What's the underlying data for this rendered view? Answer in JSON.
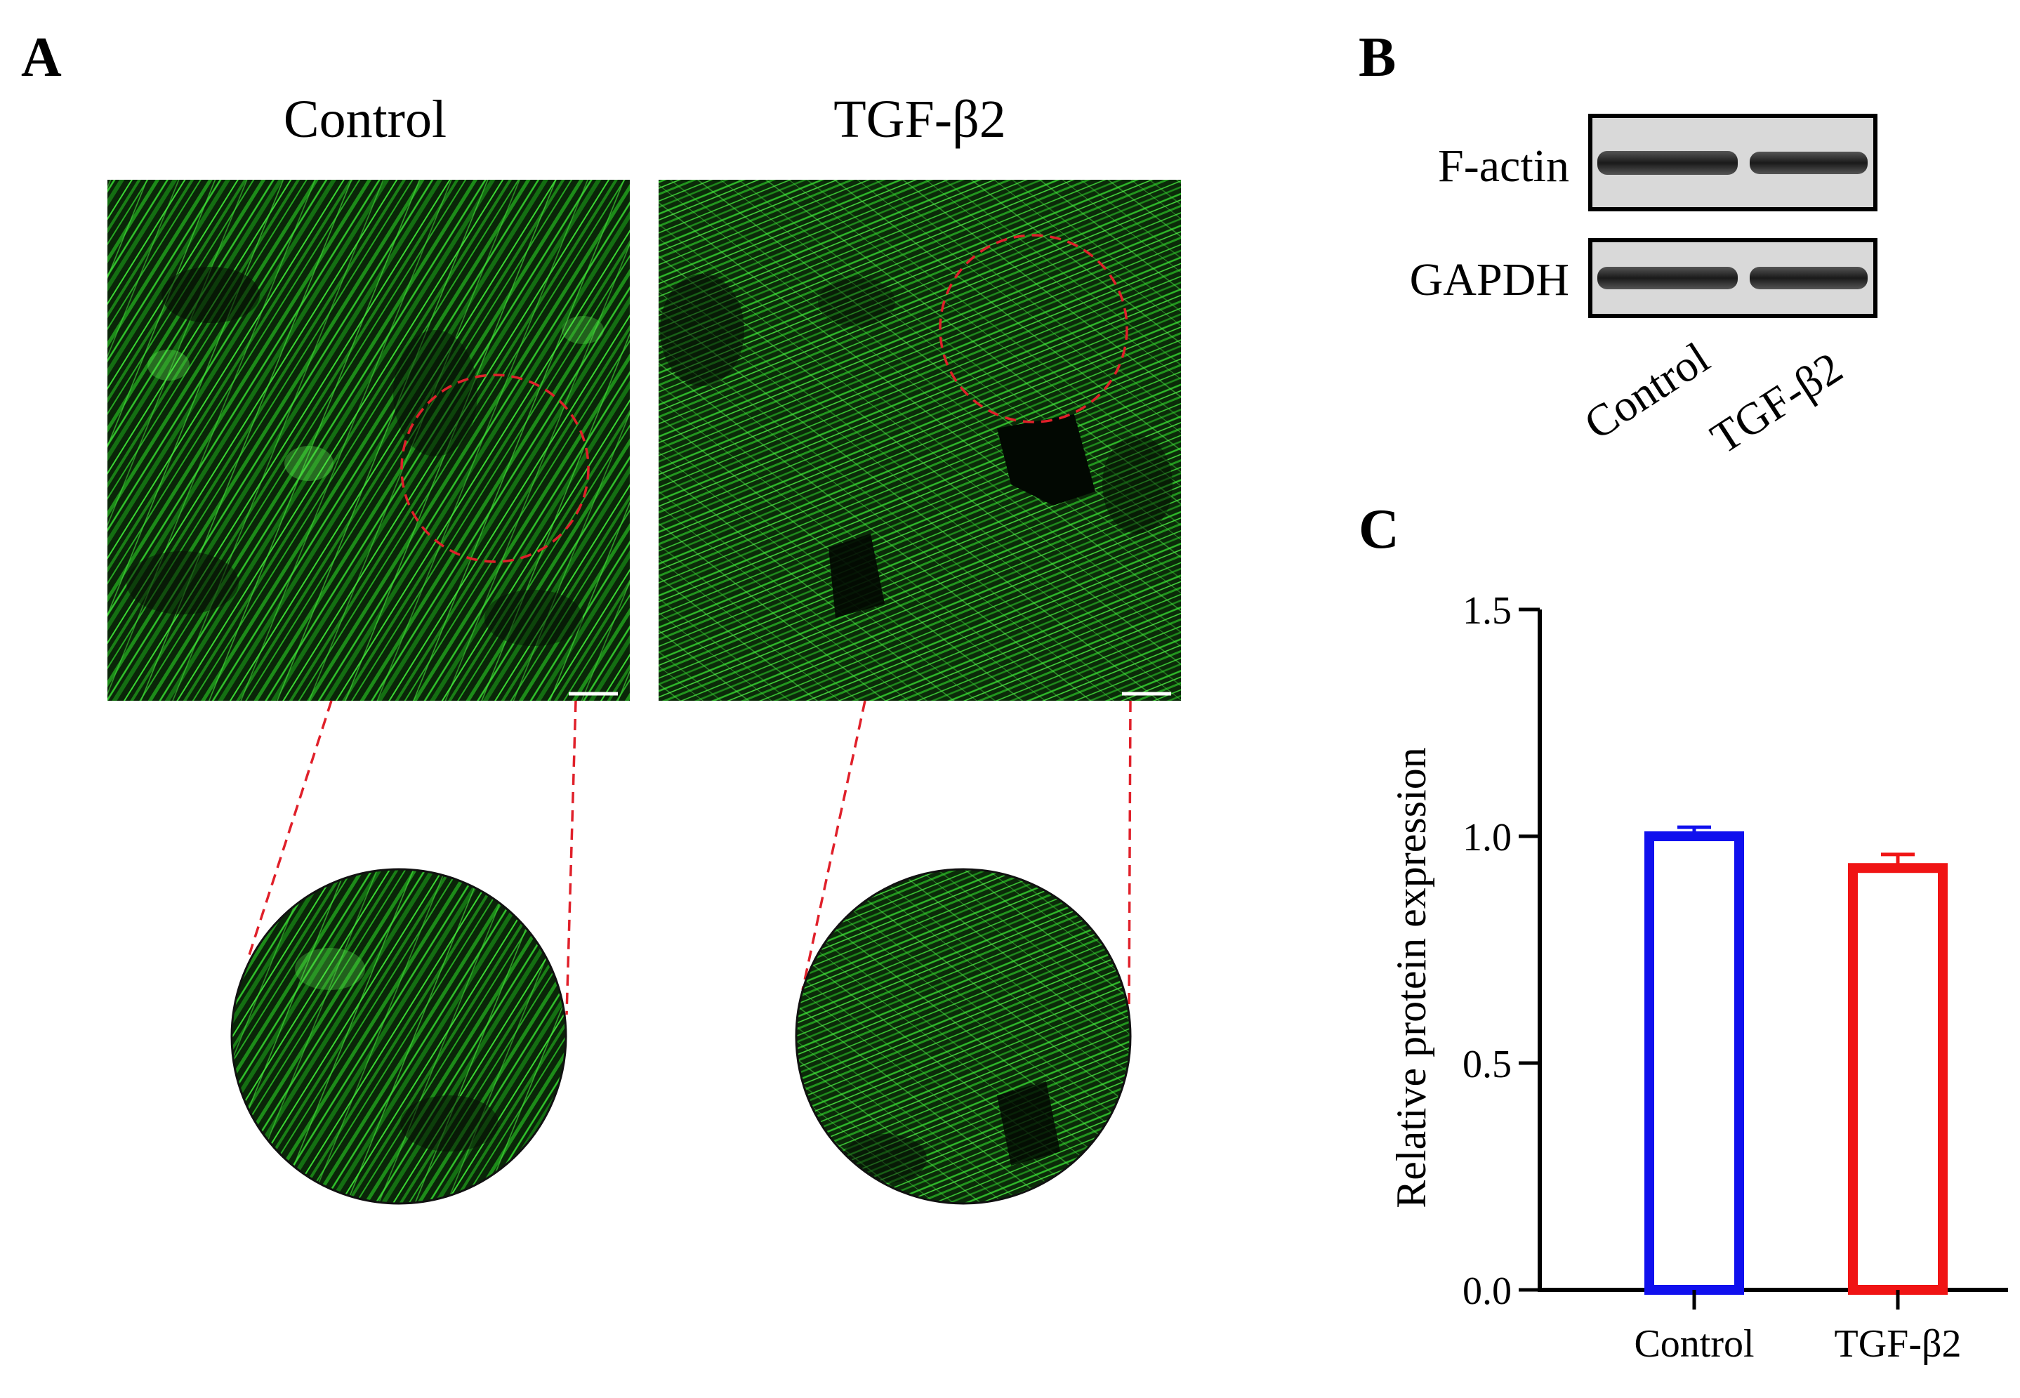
{
  "panel_a": {
    "label": "A",
    "conditions": [
      "Control",
      "TGF-β2"
    ]
  },
  "panel_b": {
    "label": "B",
    "bands": [
      "F-actin",
      "GAPDH"
    ],
    "lanes": [
      "Control",
      "TGF-β2"
    ]
  },
  "panel_c": {
    "label": "C"
  },
  "colors": {
    "fluorescence_green": "#22c41e",
    "dashed_red": "#e0202a",
    "control": "#1010ee",
    "tgf": "#f01414"
  },
  "chart_data": {
    "type": "bar",
    "categories": [
      "Control",
      "TGF-β2"
    ],
    "values": [
      1.0,
      0.93
    ],
    "errors": [
      0.02,
      0.03
    ],
    "ylabel": "Relative protein expression",
    "xlabel": "",
    "ylim": [
      0,
      1.5
    ],
    "yticks": [
      "0.0",
      "0.5",
      "1.0",
      "1.5"
    ],
    "bar_colors": [
      "#1010ee",
      "#f01414"
    ],
    "grid": false
  }
}
